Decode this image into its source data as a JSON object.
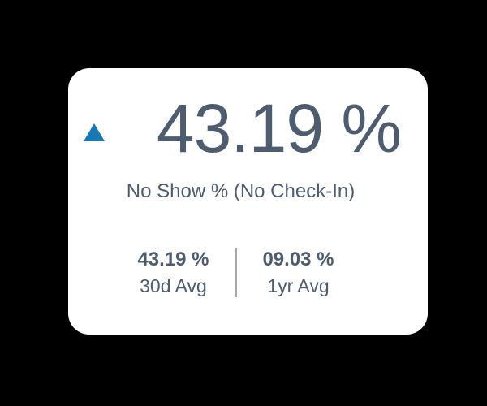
{
  "colors": {
    "background": "#000000",
    "card_background": "#ffffff",
    "text": "#4d5c6e",
    "accent": "#1878b4",
    "divider": "#a3a9af"
  },
  "metric_card": {
    "trend_icon": "triangle-up",
    "value": "43.19 %",
    "subtitle": "No Show % (No Check-In)",
    "stats": [
      {
        "value": "43.19 %",
        "label": "30d Avg"
      },
      {
        "value": "09.03 %",
        "label": "1yr Avg"
      }
    ]
  }
}
